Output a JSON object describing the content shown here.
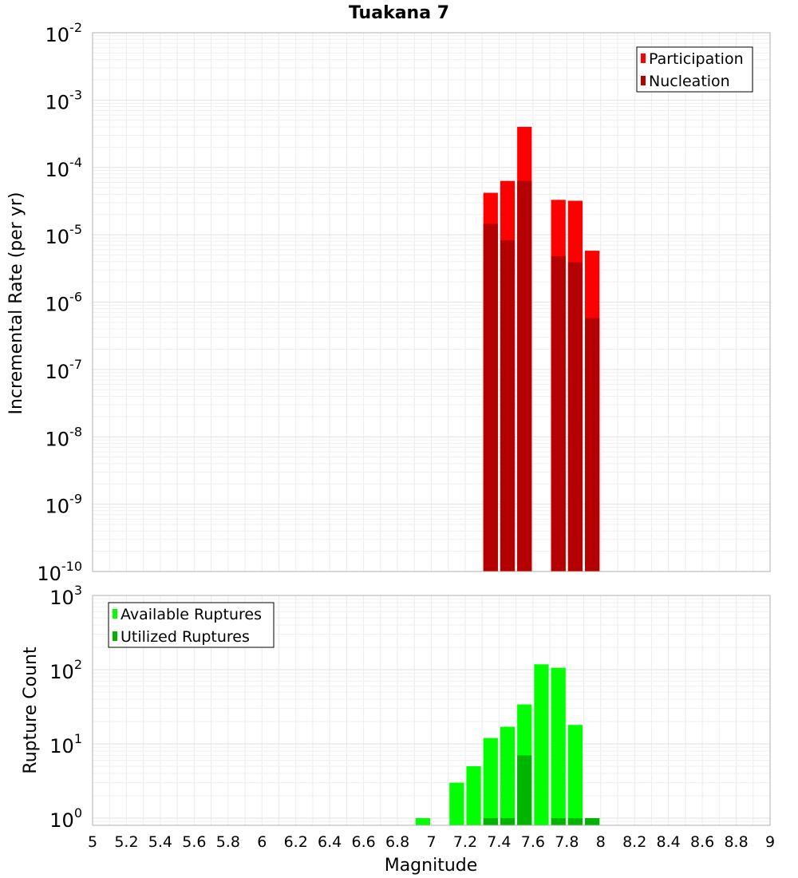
{
  "title": "Tuakana 7",
  "xlabel": "Magnitude",
  "chart_data": [
    {
      "type": "bar",
      "panel": "top",
      "ylabel": "Incremental Rate (per yr)",
      "yscale": "log",
      "ylim": [
        1e-10,
        0.01
      ],
      "xlim": [
        5,
        9
      ],
      "bin_width": 0.1,
      "legend_position": "top-right",
      "series": [
        {
          "name": "Participation",
          "color": "#ff0000",
          "x": [
            7.35,
            7.45,
            7.55,
            7.75,
            7.85,
            7.95
          ],
          "values": [
            4.2e-05,
            6.3e-05,
            0.0004,
            3.3e-05,
            3.2e-05,
            5.8e-06
          ]
        },
        {
          "name": "Nucleation",
          "color": "#b40000",
          "x": [
            7.35,
            7.45,
            7.55,
            7.75,
            7.85,
            7.95
          ],
          "values": [
            1.45e-05,
            8.3e-06,
            6.3e-05,
            4.8e-06,
            3.9e-06,
            5.8e-07
          ]
        }
      ]
    },
    {
      "type": "bar",
      "panel": "bottom",
      "ylabel": "Rupture Count",
      "yscale": "log",
      "ylim": [
        0.8,
        1000
      ],
      "xlim": [
        5,
        9
      ],
      "bin_width": 0.1,
      "legend_position": "top-left",
      "series": [
        {
          "name": "Available Ruptures",
          "color": "#00ff00",
          "x": [
            6.95,
            7.15,
            7.25,
            7.35,
            7.45,
            7.55,
            7.65,
            7.75,
            7.85,
            7.95
          ],
          "values": [
            1,
            3,
            5,
            12,
            17,
            34,
            118,
            106,
            18,
            1
          ]
        },
        {
          "name": "Utilized Ruptures",
          "color": "#00b400",
          "x": [
            7.35,
            7.45,
            7.55,
            7.75,
            7.85,
            7.95
          ],
          "values": [
            1,
            1,
            7,
            1,
            1,
            1
          ]
        }
      ]
    }
  ]
}
